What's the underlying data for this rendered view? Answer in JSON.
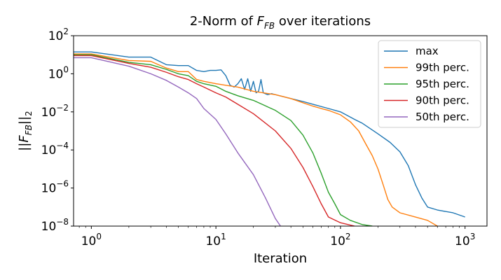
{
  "chart_data": {
    "type": "line",
    "title": {
      "prefix": "2-Norm of ",
      "var_main": "F",
      "var_sub": "FB",
      "suffix": " over iterations"
    },
    "xlabel": "Iteration",
    "ylabel": {
      "open": "||",
      "var_main": "F",
      "var_sub": "FB",
      "close": "||",
      "sub": "2"
    },
    "xscale": "log",
    "yscale": "log",
    "xlim": [
      0.72,
      1500
    ],
    "ylim": [
      1e-08,
      100
    ],
    "x_ticks": [
      {
        "base": "10",
        "exp": "0",
        "value": 1
      },
      {
        "base": "10",
        "exp": "1",
        "value": 10
      },
      {
        "base": "10",
        "exp": "2",
        "value": 100
      },
      {
        "base": "10",
        "exp": "3",
        "value": 1000
      }
    ],
    "y_ticks": [
      {
        "base": "10",
        "exp": "2",
        "value": 100
      },
      {
        "base": "10",
        "exp": "0",
        "value": 1
      },
      {
        "base": "10",
        "exp": "−2",
        "value": 0.01
      },
      {
        "base": "10",
        "exp": "−4",
        "value": 0.0001
      },
      {
        "base": "10",
        "exp": "−6",
        "value": 1e-06
      },
      {
        "base": "10",
        "exp": "−8",
        "value": 1e-08
      }
    ],
    "legend_position": "top-right",
    "grid": false,
    "series": [
      {
        "name": "max",
        "color": "#1f77b4",
        "points": [
          [
            0.72,
            14
          ],
          [
            1,
            14
          ],
          [
            2,
            7.5
          ],
          [
            3,
            7.5
          ],
          [
            4,
            3
          ],
          [
            5,
            2.7
          ],
          [
            6,
            2.7
          ],
          [
            7,
            1.5
          ],
          [
            8,
            1.3
          ],
          [
            9,
            1.5
          ],
          [
            10,
            1.5
          ],
          [
            11,
            1.6
          ],
          [
            12,
            0.8
          ],
          [
            13,
            0.25
          ],
          [
            14,
            0.2
          ],
          [
            15,
            0.3
          ],
          [
            16,
            0.55
          ],
          [
            17,
            0.15
          ],
          [
            18,
            0.55
          ],
          [
            19,
            0.12
          ],
          [
            20,
            0.4
          ],
          [
            21,
            0.1
          ],
          [
            22,
            0.12
          ],
          [
            23,
            0.5
          ],
          [
            24,
            0.1
          ],
          [
            26,
            0.08
          ],
          [
            28,
            0.09
          ],
          [
            30,
            0.08
          ],
          [
            40,
            0.05
          ],
          [
            50,
            0.035
          ],
          [
            60,
            0.025
          ],
          [
            80,
            0.015
          ],
          [
            100,
            0.01
          ],
          [
            130,
            0.004
          ],
          [
            150,
            0.0025
          ],
          [
            200,
            0.0007
          ],
          [
            250,
            0.00025
          ],
          [
            300,
            8e-05
          ],
          [
            350,
            1.5e-05
          ],
          [
            400,
            1.5e-06
          ],
          [
            450,
            3e-07
          ],
          [
            500,
            1e-07
          ],
          [
            600,
            7e-08
          ],
          [
            800,
            5e-08
          ],
          [
            1000,
            3e-08
          ]
        ]
      },
      {
        "name": "99th perc.",
        "color": "#ff7f0e",
        "points": [
          [
            0.72,
            11
          ],
          [
            1,
            11
          ],
          [
            2,
            5
          ],
          [
            3,
            4.5
          ],
          [
            4,
            2
          ],
          [
            5,
            1.3
          ],
          [
            6,
            1.3
          ],
          [
            7,
            0.5
          ],
          [
            8,
            0.4
          ],
          [
            10,
            0.3
          ],
          [
            12,
            0.25
          ],
          [
            15,
            0.2
          ],
          [
            20,
            0.12
          ],
          [
            30,
            0.08
          ],
          [
            40,
            0.05
          ],
          [
            50,
            0.03
          ],
          [
            60,
            0.02
          ],
          [
            70,
            0.015
          ],
          [
            80,
            0.012
          ],
          [
            100,
            0.007
          ],
          [
            120,
            0.003
          ],
          [
            140,
            0.001
          ],
          [
            160,
            0.0002
          ],
          [
            180,
            5e-05
          ],
          [
            200,
            1e-05
          ],
          [
            220,
            1.5e-06
          ],
          [
            240,
            2.5e-07
          ],
          [
            260,
            1e-07
          ],
          [
            300,
            5e-08
          ],
          [
            400,
            3e-08
          ],
          [
            500,
            2e-08
          ],
          [
            600,
            1e-08
          ]
        ]
      },
      {
        "name": "95th perc.",
        "color": "#2ca02c",
        "points": [
          [
            0.72,
            10
          ],
          [
            1,
            10
          ],
          [
            2,
            4
          ],
          [
            3,
            3
          ],
          [
            4,
            1.7
          ],
          [
            5,
            1
          ],
          [
            6,
            0.8
          ],
          [
            7,
            0.4
          ],
          [
            8,
            0.3
          ],
          [
            10,
            0.22
          ],
          [
            12,
            0.12
          ],
          [
            15,
            0.07
          ],
          [
            20,
            0.04
          ],
          [
            30,
            0.012
          ],
          [
            40,
            0.0035
          ],
          [
            50,
            0.0006
          ],
          [
            60,
            7e-05
          ],
          [
            70,
            6e-06
          ],
          [
            80,
            6e-07
          ],
          [
            90,
            1.5e-07
          ],
          [
            100,
            4e-08
          ],
          [
            120,
            2e-08
          ],
          [
            150,
            1.2e-08
          ],
          [
            180,
            1e-08
          ]
        ]
      },
      {
        "name": "90th perc.",
        "color": "#d62728",
        "points": [
          [
            0.72,
            9
          ],
          [
            1,
            9
          ],
          [
            2,
            3.5
          ],
          [
            3,
            2.2
          ],
          [
            4,
            1.2
          ],
          [
            5,
            0.7
          ],
          [
            6,
            0.5
          ],
          [
            7,
            0.3
          ],
          [
            8,
            0.2
          ],
          [
            10,
            0.1
          ],
          [
            12,
            0.06
          ],
          [
            15,
            0.025
          ],
          [
            20,
            0.008
          ],
          [
            30,
            0.001
          ],
          [
            40,
            0.00012
          ],
          [
            50,
            1.2e-05
          ],
          [
            60,
            1.2e-06
          ],
          [
            70,
            1.5e-07
          ],
          [
            80,
            3e-08
          ],
          [
            100,
            1.5e-08
          ],
          [
            130,
            1e-08
          ]
        ]
      },
      {
        "name": "50th perc.",
        "color": "#9467bd",
        "points": [
          [
            0.72,
            7
          ],
          [
            1,
            7
          ],
          [
            2,
            2.5
          ],
          [
            3,
            1
          ],
          [
            4,
            0.45
          ],
          [
            5,
            0.2
          ],
          [
            6,
            0.1
          ],
          [
            7,
            0.05
          ],
          [
            8,
            0.015
          ],
          [
            10,
            0.004
          ],
          [
            12,
            0.0007
          ],
          [
            15,
            7e-05
          ],
          [
            20,
            5e-06
          ],
          [
            25,
            3e-07
          ],
          [
            30,
            2.5e-08
          ],
          [
            33,
            1e-08
          ]
        ]
      }
    ]
  }
}
